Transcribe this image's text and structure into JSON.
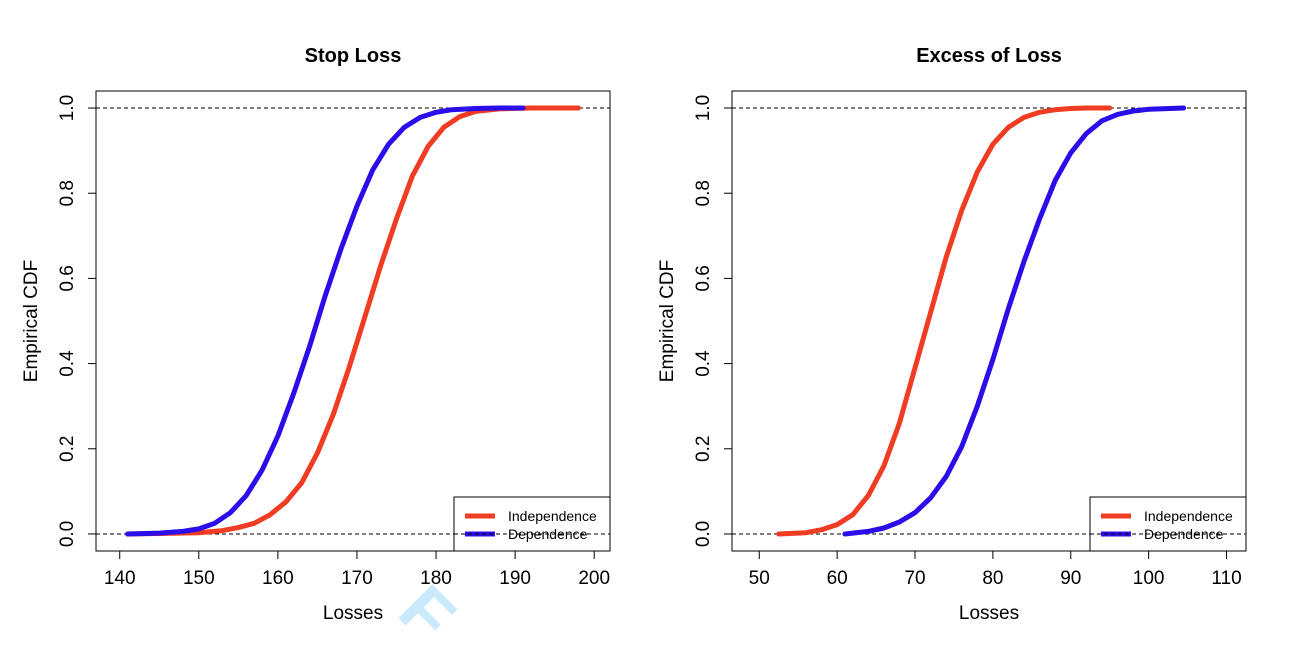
{
  "chart_data": [
    {
      "type": "line",
      "title": "Stop Loss",
      "xlabel": "Losses",
      "ylabel": "Empirical CDF",
      "xlim": [
        137,
        202
      ],
      "ylim": [
        -0.04,
        1.04
      ],
      "x_ticks": [
        140,
        150,
        160,
        170,
        180,
        190,
        200
      ],
      "x_tick_labels": [
        "140",
        "150",
        "160",
        "170",
        "180",
        "190",
        "200"
      ],
      "y_ticks": [
        0.0,
        0.2,
        0.4,
        0.6,
        0.8,
        1.0
      ],
      "y_tick_labels": [
        "0.0",
        "0.2",
        "0.4",
        "0.6",
        "0.8",
        "1.0"
      ],
      "reference_lines": [
        0,
        1
      ],
      "legend_position": "bottom-right",
      "series": [
        {
          "name": "Independence",
          "color": "#f03c23",
          "x": [
            141,
            145,
            150,
            153,
            155,
            157,
            159,
            161,
            163,
            165,
            167,
            169,
            171,
            173,
            175,
            177,
            179,
            181,
            183,
            185,
            188,
            192,
            198
          ],
          "y": [
            0,
            0.001,
            0.003,
            0.008,
            0.015,
            0.025,
            0.045,
            0.075,
            0.12,
            0.19,
            0.28,
            0.39,
            0.51,
            0.63,
            0.74,
            0.84,
            0.91,
            0.955,
            0.98,
            0.992,
            0.998,
            1.0,
            1.0
          ]
        },
        {
          "name": "Dependence",
          "color": "#2a0de8",
          "x": [
            141,
            145,
            148,
            150,
            152,
            154,
            156,
            158,
            160,
            162,
            164,
            166,
            168,
            170,
            172,
            174,
            176,
            178,
            180,
            182,
            185,
            188,
            191
          ],
          "y": [
            0,
            0.002,
            0.006,
            0.012,
            0.025,
            0.05,
            0.09,
            0.15,
            0.23,
            0.33,
            0.44,
            0.56,
            0.67,
            0.77,
            0.855,
            0.915,
            0.955,
            0.978,
            0.99,
            0.996,
            0.999,
            1.0,
            1.0
          ]
        }
      ]
    },
    {
      "type": "line",
      "title": "Excess of Loss",
      "xlabel": "Losses",
      "ylabel": "Empirical CDF",
      "xlim": [
        46.5,
        112.5
      ],
      "ylim": [
        -0.04,
        1.04
      ],
      "x_ticks": [
        50,
        60,
        70,
        80,
        90,
        100,
        110
      ],
      "x_tick_labels": [
        "50",
        "60",
        "70",
        "80",
        "90",
        "100",
        "110"
      ],
      "y_ticks": [
        0.0,
        0.2,
        0.4,
        0.6,
        0.8,
        1.0
      ],
      "y_tick_labels": [
        "0.0",
        "0.2",
        "0.4",
        "0.6",
        "0.8",
        "1.0"
      ],
      "reference_lines": [
        0,
        1
      ],
      "legend_position": "bottom-right",
      "series": [
        {
          "name": "Independence",
          "color": "#f03c23",
          "x": [
            52.5,
            56,
            58,
            60,
            62,
            64,
            66,
            68,
            70,
            72,
            74,
            76,
            78,
            80,
            82,
            84,
            86,
            88,
            90,
            92,
            95
          ],
          "y": [
            0,
            0.003,
            0.01,
            0.022,
            0.045,
            0.09,
            0.16,
            0.26,
            0.39,
            0.52,
            0.65,
            0.76,
            0.85,
            0.915,
            0.955,
            0.978,
            0.99,
            0.996,
            0.999,
            1.0,
            1.0
          ]
        },
        {
          "name": "Dependence",
          "color": "#2a0de8",
          "x": [
            61,
            64,
            66,
            68,
            70,
            72,
            74,
            76,
            78,
            80,
            82,
            84,
            86,
            88,
            90,
            92,
            94,
            96,
            98,
            100,
            104.5
          ],
          "y": [
            0,
            0.006,
            0.014,
            0.028,
            0.05,
            0.085,
            0.135,
            0.205,
            0.3,
            0.41,
            0.53,
            0.64,
            0.74,
            0.83,
            0.895,
            0.94,
            0.97,
            0.985,
            0.993,
            0.997,
            1.0
          ]
        }
      ]
    }
  ]
}
